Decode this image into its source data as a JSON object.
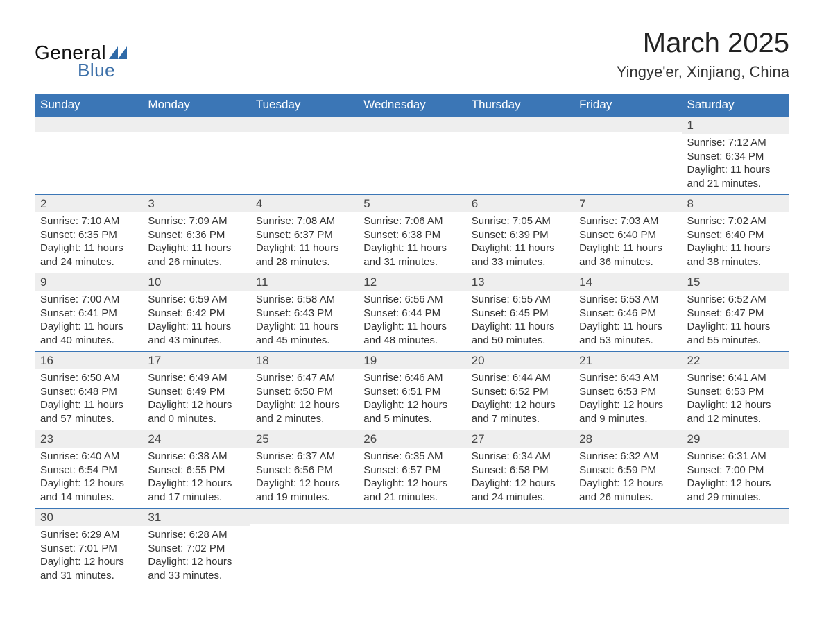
{
  "logo": {
    "line1": "General",
    "line2": "Blue",
    "accent_color": "#2f6aa8"
  },
  "header": {
    "month_title": "March 2025",
    "location": "Yingye'er, Xinjiang, China"
  },
  "calendar": {
    "header_bg": "#3b76b6",
    "header_text": "#ffffff",
    "daynum_bg": "#eeeeee",
    "border_color": "#3b76b6",
    "day_headers": [
      "Sunday",
      "Monday",
      "Tuesday",
      "Wednesday",
      "Thursday",
      "Friday",
      "Saturday"
    ],
    "weeks": [
      [
        {
          "day": "",
          "sunrise": "",
          "sunset": "",
          "daylight": ""
        },
        {
          "day": "",
          "sunrise": "",
          "sunset": "",
          "daylight": ""
        },
        {
          "day": "",
          "sunrise": "",
          "sunset": "",
          "daylight": ""
        },
        {
          "day": "",
          "sunrise": "",
          "sunset": "",
          "daylight": ""
        },
        {
          "day": "",
          "sunrise": "",
          "sunset": "",
          "daylight": ""
        },
        {
          "day": "",
          "sunrise": "",
          "sunset": "",
          "daylight": ""
        },
        {
          "day": "1",
          "sunrise": "Sunrise: 7:12 AM",
          "sunset": "Sunset: 6:34 PM",
          "daylight": "Daylight: 11 hours and 21 minutes."
        }
      ],
      [
        {
          "day": "2",
          "sunrise": "Sunrise: 7:10 AM",
          "sunset": "Sunset: 6:35 PM",
          "daylight": "Daylight: 11 hours and 24 minutes."
        },
        {
          "day": "3",
          "sunrise": "Sunrise: 7:09 AM",
          "sunset": "Sunset: 6:36 PM",
          "daylight": "Daylight: 11 hours and 26 minutes."
        },
        {
          "day": "4",
          "sunrise": "Sunrise: 7:08 AM",
          "sunset": "Sunset: 6:37 PM",
          "daylight": "Daylight: 11 hours and 28 minutes."
        },
        {
          "day": "5",
          "sunrise": "Sunrise: 7:06 AM",
          "sunset": "Sunset: 6:38 PM",
          "daylight": "Daylight: 11 hours and 31 minutes."
        },
        {
          "day": "6",
          "sunrise": "Sunrise: 7:05 AM",
          "sunset": "Sunset: 6:39 PM",
          "daylight": "Daylight: 11 hours and 33 minutes."
        },
        {
          "day": "7",
          "sunrise": "Sunrise: 7:03 AM",
          "sunset": "Sunset: 6:40 PM",
          "daylight": "Daylight: 11 hours and 36 minutes."
        },
        {
          "day": "8",
          "sunrise": "Sunrise: 7:02 AM",
          "sunset": "Sunset: 6:40 PM",
          "daylight": "Daylight: 11 hours and 38 minutes."
        }
      ],
      [
        {
          "day": "9",
          "sunrise": "Sunrise: 7:00 AM",
          "sunset": "Sunset: 6:41 PM",
          "daylight": "Daylight: 11 hours and 40 minutes."
        },
        {
          "day": "10",
          "sunrise": "Sunrise: 6:59 AM",
          "sunset": "Sunset: 6:42 PM",
          "daylight": "Daylight: 11 hours and 43 minutes."
        },
        {
          "day": "11",
          "sunrise": "Sunrise: 6:58 AM",
          "sunset": "Sunset: 6:43 PM",
          "daylight": "Daylight: 11 hours and 45 minutes."
        },
        {
          "day": "12",
          "sunrise": "Sunrise: 6:56 AM",
          "sunset": "Sunset: 6:44 PM",
          "daylight": "Daylight: 11 hours and 48 minutes."
        },
        {
          "day": "13",
          "sunrise": "Sunrise: 6:55 AM",
          "sunset": "Sunset: 6:45 PM",
          "daylight": "Daylight: 11 hours and 50 minutes."
        },
        {
          "day": "14",
          "sunrise": "Sunrise: 6:53 AM",
          "sunset": "Sunset: 6:46 PM",
          "daylight": "Daylight: 11 hours and 53 minutes."
        },
        {
          "day": "15",
          "sunrise": "Sunrise: 6:52 AM",
          "sunset": "Sunset: 6:47 PM",
          "daylight": "Daylight: 11 hours and 55 minutes."
        }
      ],
      [
        {
          "day": "16",
          "sunrise": "Sunrise: 6:50 AM",
          "sunset": "Sunset: 6:48 PM",
          "daylight": "Daylight: 11 hours and 57 minutes."
        },
        {
          "day": "17",
          "sunrise": "Sunrise: 6:49 AM",
          "sunset": "Sunset: 6:49 PM",
          "daylight": "Daylight: 12 hours and 0 minutes."
        },
        {
          "day": "18",
          "sunrise": "Sunrise: 6:47 AM",
          "sunset": "Sunset: 6:50 PM",
          "daylight": "Daylight: 12 hours and 2 minutes."
        },
        {
          "day": "19",
          "sunrise": "Sunrise: 6:46 AM",
          "sunset": "Sunset: 6:51 PM",
          "daylight": "Daylight: 12 hours and 5 minutes."
        },
        {
          "day": "20",
          "sunrise": "Sunrise: 6:44 AM",
          "sunset": "Sunset: 6:52 PM",
          "daylight": "Daylight: 12 hours and 7 minutes."
        },
        {
          "day": "21",
          "sunrise": "Sunrise: 6:43 AM",
          "sunset": "Sunset: 6:53 PM",
          "daylight": "Daylight: 12 hours and 9 minutes."
        },
        {
          "day": "22",
          "sunrise": "Sunrise: 6:41 AM",
          "sunset": "Sunset: 6:53 PM",
          "daylight": "Daylight: 12 hours and 12 minutes."
        }
      ],
      [
        {
          "day": "23",
          "sunrise": "Sunrise: 6:40 AM",
          "sunset": "Sunset: 6:54 PM",
          "daylight": "Daylight: 12 hours and 14 minutes."
        },
        {
          "day": "24",
          "sunrise": "Sunrise: 6:38 AM",
          "sunset": "Sunset: 6:55 PM",
          "daylight": "Daylight: 12 hours and 17 minutes."
        },
        {
          "day": "25",
          "sunrise": "Sunrise: 6:37 AM",
          "sunset": "Sunset: 6:56 PM",
          "daylight": "Daylight: 12 hours and 19 minutes."
        },
        {
          "day": "26",
          "sunrise": "Sunrise: 6:35 AM",
          "sunset": "Sunset: 6:57 PM",
          "daylight": "Daylight: 12 hours and 21 minutes."
        },
        {
          "day": "27",
          "sunrise": "Sunrise: 6:34 AM",
          "sunset": "Sunset: 6:58 PM",
          "daylight": "Daylight: 12 hours and 24 minutes."
        },
        {
          "day": "28",
          "sunrise": "Sunrise: 6:32 AM",
          "sunset": "Sunset: 6:59 PM",
          "daylight": "Daylight: 12 hours and 26 minutes."
        },
        {
          "day": "29",
          "sunrise": "Sunrise: 6:31 AM",
          "sunset": "Sunset: 7:00 PM",
          "daylight": "Daylight: 12 hours and 29 minutes."
        }
      ],
      [
        {
          "day": "30",
          "sunrise": "Sunrise: 6:29 AM",
          "sunset": "Sunset: 7:01 PM",
          "daylight": "Daylight: 12 hours and 31 minutes."
        },
        {
          "day": "31",
          "sunrise": "Sunrise: 6:28 AM",
          "sunset": "Sunset: 7:02 PM",
          "daylight": "Daylight: 12 hours and 33 minutes."
        },
        {
          "day": "",
          "sunrise": "",
          "sunset": "",
          "daylight": ""
        },
        {
          "day": "",
          "sunrise": "",
          "sunset": "",
          "daylight": ""
        },
        {
          "day": "",
          "sunrise": "",
          "sunset": "",
          "daylight": ""
        },
        {
          "day": "",
          "sunrise": "",
          "sunset": "",
          "daylight": ""
        },
        {
          "day": "",
          "sunrise": "",
          "sunset": "",
          "daylight": ""
        }
      ]
    ]
  }
}
